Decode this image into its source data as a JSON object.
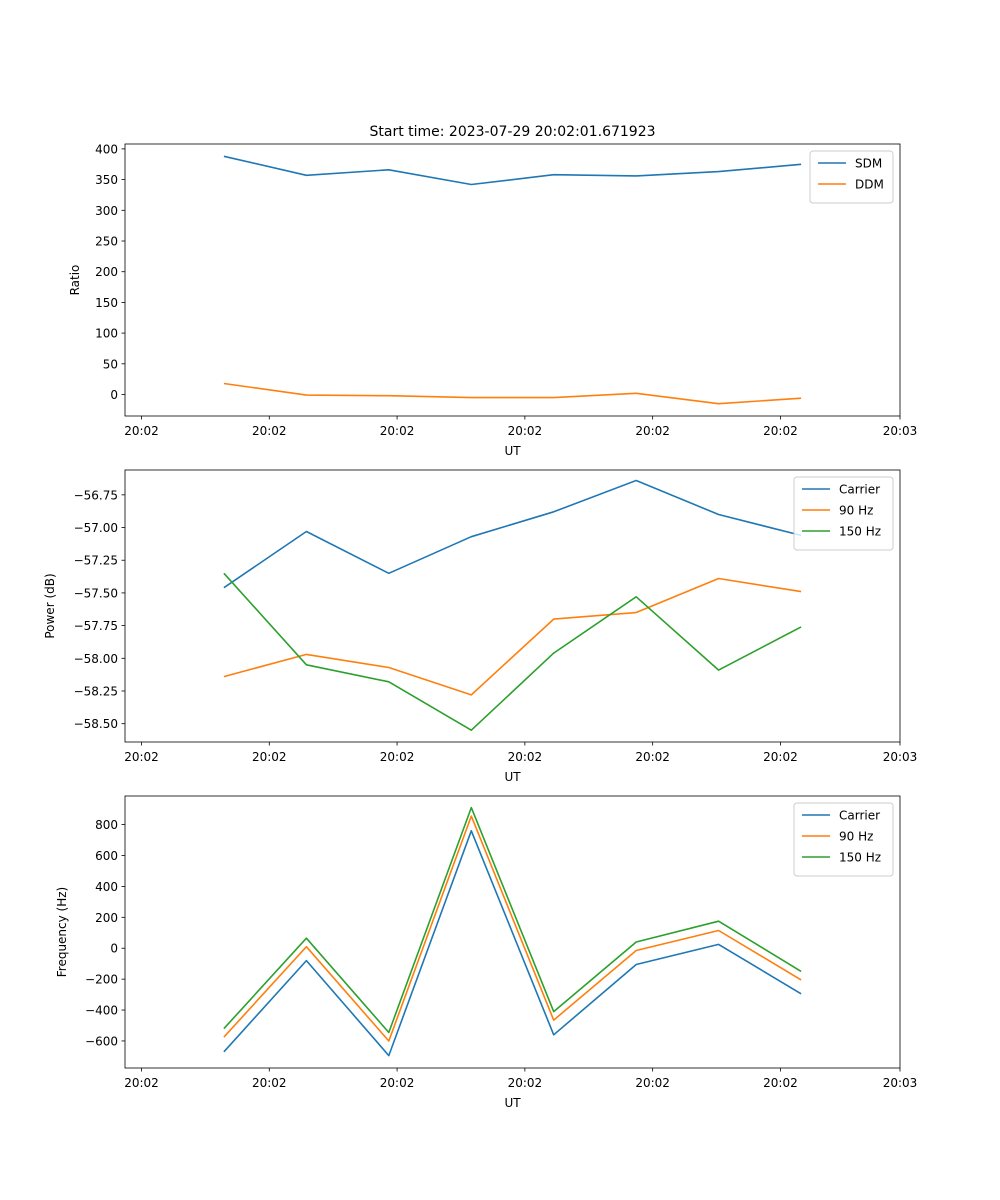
{
  "figure_title": "Start time: 2023-07-29 20:02:01.671923",
  "colors": {
    "blue": "#1f77b4",
    "orange": "#ff7f0e",
    "green": "#2ca02c"
  },
  "chart_data": [
    {
      "type": "line",
      "title": "Start time: 2023-07-29 20:02:01.671923",
      "xlabel": "UT",
      "ylabel": "Ratio",
      "x": [
        1,
        2,
        3,
        4,
        5,
        6,
        7,
        8
      ],
      "xlim": [
        -0.2,
        9.2
      ],
      "xticks": [
        0,
        1.55,
        3.1,
        4.65,
        6.2,
        7.75,
        9.2
      ],
      "xtick_labels": [
        "20:02",
        "20:02",
        "20:02",
        "20:02",
        "20:02",
        "20:02",
        "20:03"
      ],
      "ylim": [
        -35,
        408
      ],
      "yticks": [
        0,
        50,
        100,
        150,
        200,
        250,
        300,
        350,
        400
      ],
      "ytick_labels": [
        "0",
        "50",
        "100",
        "150",
        "200",
        "250",
        "300",
        "350",
        "400"
      ],
      "legend": "top-right",
      "series": [
        {
          "name": "SDM",
          "color": "#1f77b4",
          "values": [
            388,
            357,
            366,
            342,
            358,
            356,
            363,
            375
          ]
        },
        {
          "name": "DDM",
          "color": "#ff7f0e",
          "values": [
            18,
            -1,
            -2,
            -5,
            -5,
            2,
            -15,
            -6
          ]
        }
      ]
    },
    {
      "type": "line",
      "title": "",
      "xlabel": "UT",
      "ylabel": "Power (dB)",
      "x": [
        1,
        2,
        3,
        4,
        5,
        6,
        7,
        8
      ],
      "xlim": [
        -0.2,
        9.2
      ],
      "xticks": [
        0,
        1.55,
        3.1,
        4.65,
        6.2,
        7.75,
        9.2
      ],
      "xtick_labels": [
        "20:02",
        "20:02",
        "20:02",
        "20:02",
        "20:02",
        "20:02",
        "20:03"
      ],
      "ylim": [
        -58.64,
        -56.56
      ],
      "yticks": [
        -58.5,
        -58.25,
        -58.0,
        -57.75,
        -57.5,
        -57.25,
        -57.0,
        -56.75
      ],
      "ytick_labels": [
        "−58.50",
        "−58.25",
        "−58.00",
        "−57.75",
        "−57.50",
        "−57.25",
        "−57.00",
        "−56.75"
      ],
      "legend": "top-right",
      "series": [
        {
          "name": "Carrier",
          "color": "#1f77b4",
          "values": [
            -57.46,
            -57.03,
            -57.35,
            -57.07,
            -56.88,
            -56.64,
            -56.9,
            -57.06
          ]
        },
        {
          "name": "90 Hz",
          "color": "#ff7f0e",
          "values": [
            -58.14,
            -57.97,
            -58.07,
            -58.28,
            -57.7,
            -57.65,
            -57.39,
            -57.49
          ]
        },
        {
          "name": "150 Hz",
          "color": "#2ca02c",
          "values": [
            -57.35,
            -58.05,
            -58.18,
            -58.55,
            -57.96,
            -57.53,
            -58.09,
            -57.76
          ]
        }
      ]
    },
    {
      "type": "line",
      "title": "",
      "xlabel": "UT",
      "ylabel": "Frequency (Hz)",
      "x": [
        1,
        2,
        3,
        4,
        5,
        6,
        7,
        8
      ],
      "xlim": [
        -0.2,
        9.2
      ],
      "xticks": [
        0,
        1.55,
        3.1,
        4.65,
        6.2,
        7.75,
        9.2
      ],
      "xtick_labels": [
        "20:02",
        "20:02",
        "20:02",
        "20:02",
        "20:02",
        "20:02",
        "20:03"
      ],
      "ylim": [
        -775,
        985
      ],
      "yticks": [
        -600,
        -400,
        -200,
        0,
        200,
        400,
        600,
        800
      ],
      "ytick_labels": [
        "−600",
        "−400",
        "−200",
        "0",
        "200",
        "400",
        "600",
        "800"
      ],
      "legend": "top-right",
      "series": [
        {
          "name": "Carrier",
          "color": "#1f77b4",
          "values": [
            -670,
            -80,
            -695,
            760,
            -560,
            -105,
            25,
            -295
          ]
        },
        {
          "name": "90 Hz",
          "color": "#ff7f0e",
          "values": [
            -575,
            10,
            -600,
            855,
            -465,
            -15,
            115,
            -205
          ]
        },
        {
          "name": "150 Hz",
          "color": "#2ca02c",
          "values": [
            -520,
            65,
            -545,
            910,
            -410,
            40,
            175,
            -150
          ]
        }
      ]
    }
  ]
}
